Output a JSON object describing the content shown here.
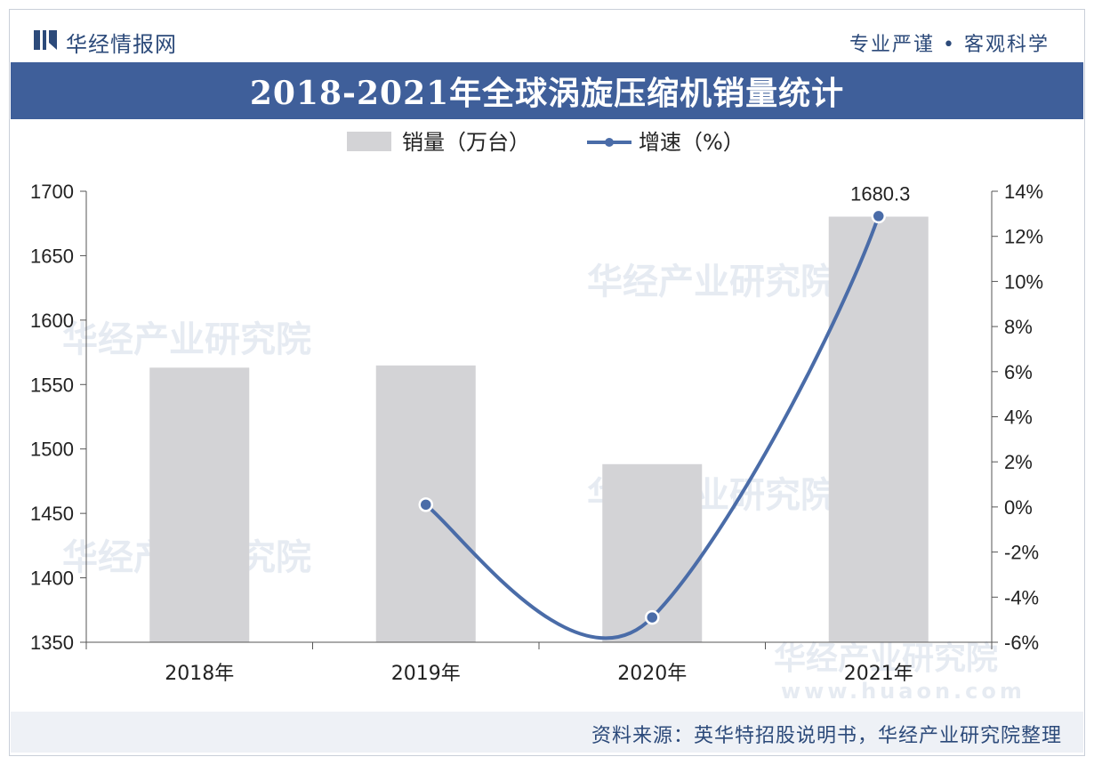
{
  "header": {
    "brand": "华经情报网",
    "slogan": "专业严谨 • 客观科学"
  },
  "title": "2018-2021年全球涡旋压缩机销量统计",
  "footer": {
    "source": "资料来源：英华特招股说明书，华经产业研究院整理"
  },
  "watermark": {
    "text": "华经产业研究院",
    "url": "www.huaon.com"
  },
  "colors": {
    "bar": "#d3d3d6",
    "line": "#4a6ca8",
    "title_band": "#3f5f9a",
    "brand": "#2c4a7a"
  },
  "chart_data": {
    "type": "bar",
    "categories": [
      "2018年",
      "2019年",
      "2020年",
      "2021年"
    ],
    "series": [
      {
        "name": "销量（万台）",
        "type": "bar",
        "axis": "left",
        "values": [
          1563.1,
          1564.8,
          1488.2,
          1680.3
        ],
        "data_labels": [
          null,
          null,
          null,
          "1680.3"
        ]
      },
      {
        "name": "增速（%）",
        "type": "line",
        "axis": "right",
        "values": [
          null,
          0.1,
          -4.9,
          12.9
        ]
      }
    ],
    "legend_labels": [
      "销量（万台）",
      "增速（%）"
    ],
    "legend_position": "top-center",
    "y_left": {
      "min": 1350,
      "max": 1700,
      "ticks": [
        "1350",
        "1400",
        "1450",
        "1500",
        "1550",
        "1600",
        "1650",
        "1700"
      ]
    },
    "y_right": {
      "min": -6,
      "max": 14,
      "ticks": [
        "-6%",
        "-4%",
        "-2%",
        "0%",
        "2%",
        "4%",
        "6%",
        "8%",
        "10%",
        "12%",
        "14%"
      ]
    },
    "grid": false
  }
}
